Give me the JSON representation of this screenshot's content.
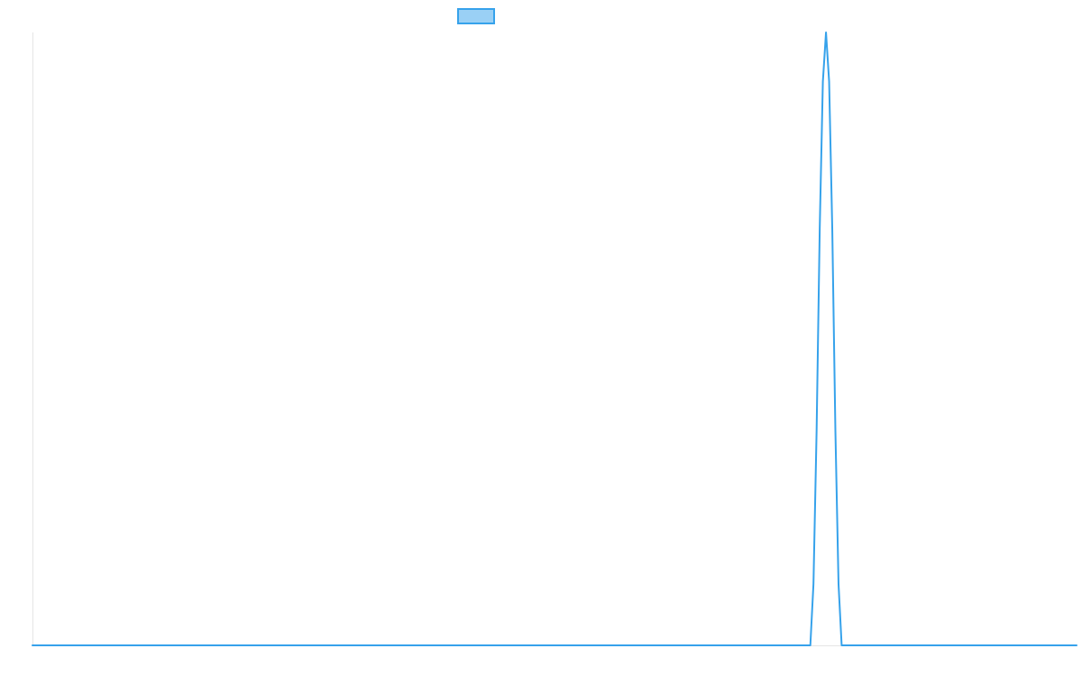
{
  "chart_data": {
    "type": "line",
    "title": "",
    "xlabel": "",
    "ylabel": "",
    "xlim": [
      0,
      1000
    ],
    "ylim": [
      0,
      1
    ],
    "grid": false,
    "legend": {
      "placement": "top-center",
      "show_label": false
    },
    "colors": {
      "line": "#36a2eb",
      "legend_fill": "#9ad0f5",
      "axis": "#e5e5e5"
    },
    "series": [
      {
        "color": "#36a2eb",
        "points": [
          {
            "x": 0,
            "y": 0
          },
          {
            "x": 745,
            "y": 0
          },
          {
            "x": 748,
            "y": 0.1
          },
          {
            "x": 751,
            "y": 0.35
          },
          {
            "x": 754,
            "y": 0.68
          },
          {
            "x": 757,
            "y": 0.92
          },
          {
            "x": 760,
            "y": 1
          },
          {
            "x": 763,
            "y": 0.92
          },
          {
            "x": 766,
            "y": 0.68
          },
          {
            "x": 769,
            "y": 0.35
          },
          {
            "x": 772,
            "y": 0.1
          },
          {
            "x": 775,
            "y": 0
          },
          {
            "x": 1000,
            "y": 0
          }
        ]
      }
    ]
  }
}
